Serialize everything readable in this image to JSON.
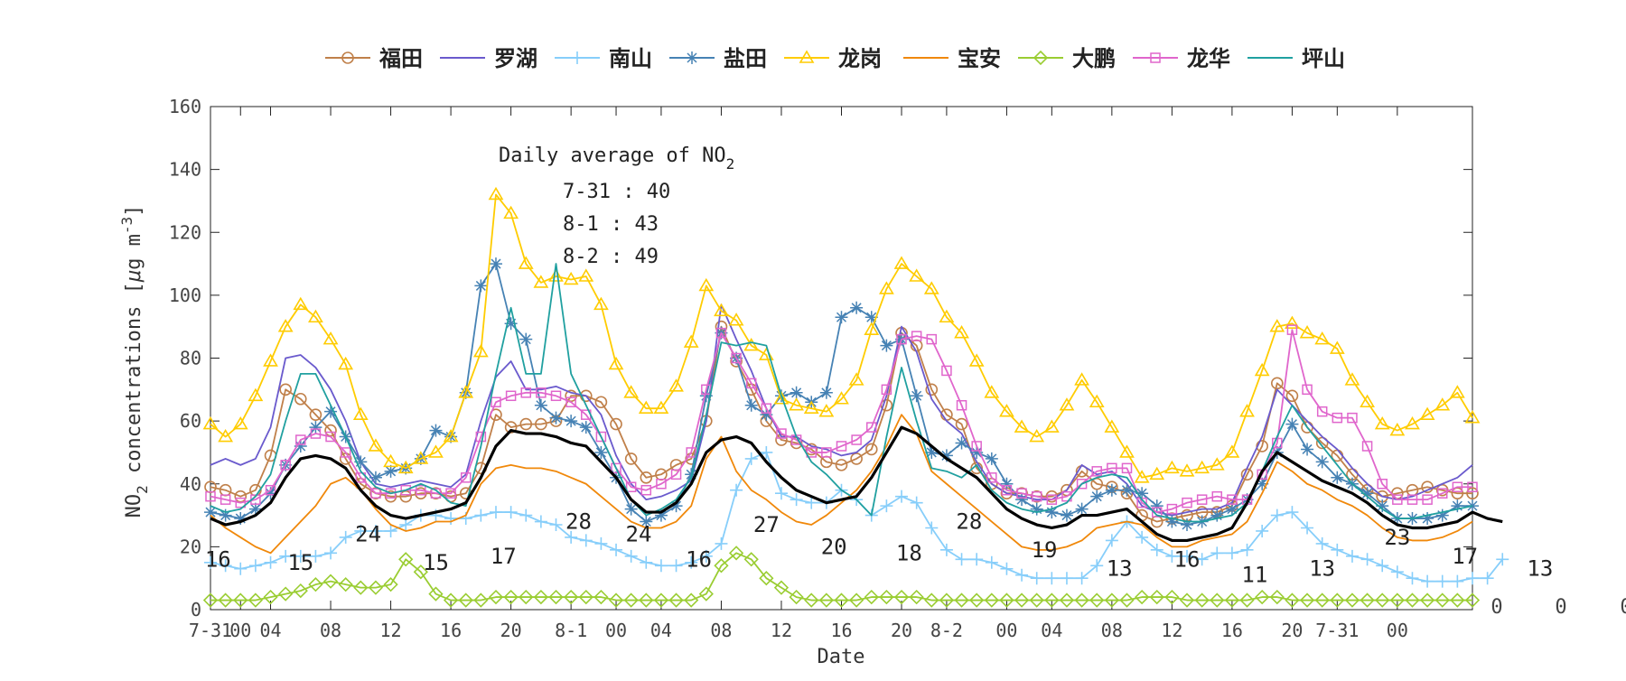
{
  "chart_data": {
    "type": "line",
    "xlabel": "Date",
    "ylabel_parts": {
      "pre": "NO",
      "sub": "2",
      "mid": " concentrations [",
      "mu": "μ",
      "post": "g m",
      "sup": "-3",
      "end": "]"
    },
    "ylim": [
      0,
      160
    ],
    "yticks": [
      "0",
      "20",
      "40",
      "60",
      "80",
      "100",
      "120",
      "140",
      "160"
    ],
    "x_range_hours": [
      0,
      84
    ],
    "xtick_labels": [
      {
        "h": 0,
        "text": "7-31"
      },
      {
        "h": 2,
        "text": "00"
      },
      {
        "h": 4,
        "text": "04"
      },
      {
        "h": 8,
        "text": "08"
      },
      {
        "h": 12,
        "text": "12"
      },
      {
        "h": 16,
        "text": "16"
      },
      {
        "h": 20,
        "text": "20"
      },
      {
        "h": 24,
        "text": "8-1"
      },
      {
        "h": 27,
        "text": "00"
      },
      {
        "h": 30,
        "text": "04"
      },
      {
        "h": 34,
        "text": "08"
      },
      {
        "h": 38,
        "text": "12"
      },
      {
        "h": 42,
        "text": "16"
      },
      {
        "h": 46,
        "text": "20"
      },
      {
        "h": 49,
        "text": "8-2"
      },
      {
        "h": 53,
        "text": "00"
      },
      {
        "h": 56,
        "text": "04"
      },
      {
        "h": 60,
        "text": "08"
      },
      {
        "h": 64,
        "text": "12"
      },
      {
        "h": 68,
        "text": "16"
      },
      {
        "h": 72,
        "text": "20"
      },
      {
        "h": 75,
        "text": "7-31"
      },
      {
        "h": 79,
        "text": "00"
      }
    ],
    "legend_position": "top",
    "legend": [
      "福田",
      "罗湖",
      "南山",
      "盐田",
      "龙岗",
      "宝安",
      "大鹏",
      "龙华",
      "坪山"
    ],
    "annotation": {
      "title": "Daily average of NO",
      "title_sub": "2",
      "lines": [
        "7-31 : 40",
        "8-1 : 43",
        "8-2 : 49"
      ]
    },
    "outside_labels": [
      "0",
      "0",
      "0"
    ],
    "series": [
      {
        "name": "福田",
        "color": "#c0804a",
        "marker": "circle",
        "values": [
          39,
          38,
          36,
          38,
          49,
          70,
          67,
          62,
          57,
          48,
          40,
          37,
          36,
          36,
          37,
          37,
          36,
          37,
          45,
          62,
          58,
          59,
          59,
          60,
          68,
          68,
          66,
          59,
          48,
          42,
          43,
          46,
          48,
          60,
          90,
          79,
          70,
          60,
          54,
          53,
          51,
          47,
          46,
          48,
          51,
          65,
          88,
          84,
          70,
          62,
          59,
          45,
          40,
          37,
          37,
          36,
          36,
          38,
          44,
          40,
          39,
          37,
          30,
          28,
          29,
          30,
          31,
          31,
          33,
          43,
          52,
          72,
          68,
          58,
          53,
          49,
          43,
          38,
          36,
          37,
          38,
          39,
          38,
          37,
          37
        ]
      },
      {
        "name": "罗湖",
        "color": "#6a5acd",
        "marker": "none",
        "values": [
          46,
          48,
          46,
          48,
          58,
          80,
          81,
          77,
          70,
          60,
          47,
          40,
          39,
          40,
          41,
          40,
          39,
          43,
          60,
          74,
          79,
          70,
          70,
          71,
          69,
          68,
          62,
          49,
          40,
          35,
          36,
          38,
          41,
          60,
          97,
          86,
          76,
          64,
          55,
          55,
          52,
          51,
          49,
          50,
          54,
          68,
          90,
          82,
          67,
          60,
          56,
          47,
          40,
          37,
          36,
          35,
          35,
          38,
          46,
          43,
          44,
          40,
          33,
          31,
          30,
          31,
          32,
          32,
          34,
          45,
          55,
          70,
          65,
          60,
          55,
          51,
          45,
          40,
          36,
          35,
          36,
          38,
          40,
          42,
          46
        ]
      },
      {
        "name": "南山",
        "color": "#87cefa",
        "marker": "plus",
        "values": [
          15,
          14,
          13,
          14,
          15,
          17,
          17,
          17,
          18,
          23,
          25,
          25,
          25,
          27,
          30,
          30,
          29,
          29,
          30,
          31,
          31,
          30,
          28,
          27,
          23,
          22,
          21,
          19,
          17,
          15,
          14,
          14,
          15,
          17,
          21,
          38,
          48,
          50,
          37,
          35,
          34,
          34,
          38,
          35,
          30,
          33,
          36,
          34,
          26,
          19,
          16,
          16,
          15,
          13,
          11,
          10,
          10,
          10,
          10,
          14,
          22,
          28,
          23,
          19,
          17,
          17,
          16,
          18,
          18,
          19,
          25,
          30,
          31,
          26,
          21,
          19,
          17,
          16,
          14,
          12,
          10,
          9,
          9,
          9,
          10,
          10,
          16
        ]
      },
      {
        "name": "盐田",
        "color": "#4682b4",
        "marker": "star",
        "values": [
          31,
          30,
          29,
          32,
          37,
          46,
          52,
          58,
          63,
          55,
          47,
          42,
          44,
          45,
          48,
          57,
          55,
          69,
          103,
          110,
          91,
          86,
          65,
          61,
          60,
          58,
          50,
          42,
          32,
          28,
          30,
          33,
          43,
          68,
          88,
          80,
          65,
          62,
          68,
          69,
          66,
          69,
          93,
          96,
          93,
          84,
          86,
          68,
          50,
          49,
          53,
          50,
          48,
          40,
          35,
          32,
          31,
          30,
          32,
          36,
          38,
          38,
          37,
          33,
          28,
          27,
          28,
          30,
          32,
          35,
          40,
          50,
          59,
          51,
          47,
          42,
          40,
          37,
          33,
          29,
          29,
          29,
          30,
          33,
          33
        ]
      },
      {
        "name": "龙岗",
        "color": "#ffcc00",
        "marker": "triangle",
        "values": [
          59,
          55,
          59,
          68,
          79,
          90,
          97,
          93,
          86,
          78,
          62,
          52,
          47,
          45,
          48,
          50,
          55,
          69,
          82,
          132,
          126,
          110,
          104,
          106,
          105,
          106,
          97,
          78,
          69,
          64,
          64,
          71,
          85,
          103,
          95,
          92,
          84,
          81,
          67,
          65,
          64,
          63,
          67,
          73,
          89,
          102,
          110,
          106,
          102,
          93,
          88,
          79,
          69,
          63,
          58,
          55,
          58,
          65,
          73,
          66,
          58,
          50,
          42,
          43,
          45,
          44,
          45,
          46,
          50,
          63,
          76,
          90,
          91,
          88,
          86,
          83,
          73,
          66,
          59,
          57,
          59,
          62,
          65,
          69,
          61
        ]
      },
      {
        "name": "宝安",
        "color": "#f0880a",
        "marker": "none",
        "values": [
          30,
          26,
          23,
          20,
          18,
          23,
          28,
          33,
          40,
          42,
          38,
          32,
          27,
          25,
          26,
          28,
          28,
          30,
          40,
          45,
          46,
          45,
          45,
          44,
          42,
          40,
          36,
          32,
          28,
          26,
          26,
          28,
          33,
          48,
          55,
          44,
          38,
          35,
          31,
          28,
          27,
          30,
          34,
          38,
          44,
          52,
          62,
          56,
          44,
          40,
          36,
          32,
          28,
          24,
          20,
          19,
          19,
          20,
          22,
          26,
          27,
          28,
          27,
          23,
          20,
          20,
          22,
          23,
          24,
          28,
          37,
          47,
          44,
          40,
          38,
          35,
          33,
          30,
          26,
          23,
          22,
          22,
          23,
          25,
          28
        ]
      },
      {
        "name": "大鹏",
        "color": "#9acd32",
        "marker": "diamond",
        "values": [
          3,
          3,
          3,
          3,
          4,
          5,
          6,
          8,
          9,
          8,
          7,
          7,
          8,
          16,
          12,
          5,
          3,
          3,
          3,
          4,
          4,
          4,
          4,
          4,
          4,
          4,
          4,
          3,
          3,
          3,
          3,
          3,
          3,
          5,
          14,
          18,
          16,
          10,
          7,
          4,
          3,
          3,
          3,
          3,
          4,
          4,
          4,
          4,
          3,
          3,
          3,
          3,
          3,
          3,
          3,
          3,
          3,
          3,
          3,
          3,
          3,
          3,
          4,
          4,
          4,
          3,
          3,
          3,
          3,
          3,
          4,
          4,
          3,
          3,
          3,
          3,
          3,
          3,
          3,
          3,
          3,
          3,
          3,
          3,
          3
        ]
      },
      {
        "name": "龙华",
        "color": "#e066cc",
        "marker": "square",
        "values": [
          36,
          35,
          34,
          35,
          38,
          46,
          54,
          56,
          55,
          50,
          42,
          37,
          37,
          38,
          38,
          37,
          37,
          42,
          55,
          66,
          68,
          69,
          69,
          68,
          66,
          62,
          55,
          45,
          39,
          38,
          40,
          43,
          50,
          70,
          88,
          80,
          72,
          64,
          56,
          54,
          50,
          50,
          52,
          54,
          58,
          70,
          86,
          87,
          86,
          76,
          65,
          52,
          42,
          38,
          37,
          36,
          35,
          36,
          40,
          44,
          45,
          45,
          34,
          31,
          32,
          34,
          35,
          36,
          35,
          35,
          43,
          53,
          89,
          70,
          63,
          61,
          61,
          52,
          40,
          35,
          35,
          35,
          37,
          39,
          39
        ]
      },
      {
        "name": "坪山",
        "color": "#20a0a0",
        "marker": "none",
        "values": [
          33,
          31,
          32,
          36,
          43,
          60,
          75,
          75,
          65,
          55,
          44,
          39,
          37,
          38,
          40,
          38,
          34,
          33,
          52,
          75,
          96,
          75,
          75,
          110,
          75,
          65,
          55,
          45,
          35,
          30,
          32,
          35,
          42,
          62,
          85,
          84,
          85,
          84,
          68,
          55,
          47,
          43,
          38,
          35,
          30,
          55,
          77,
          60,
          45,
          44,
          42,
          46,
          38,
          34,
          32,
          31,
          32,
          34,
          40,
          42,
          43,
          42,
          35,
          30,
          29,
          28,
          28,
          29,
          30,
          34,
          44,
          55,
          65,
          58,
          52,
          46,
          40,
          36,
          32,
          29,
          29,
          30,
          31,
          32,
          33
        ]
      },
      {
        "name": "",
        "color": "#000000",
        "marker": "none",
        "bold": true,
        "values": [
          29,
          27,
          28,
          30,
          34,
          42,
          48,
          49,
          48,
          45,
          38,
          33,
          30,
          29,
          30,
          31,
          32,
          34,
          42,
          52,
          57,
          56,
          56,
          55,
          53,
          52,
          47,
          42,
          35,
          31,
          31,
          34,
          40,
          50,
          54,
          55,
          53,
          47,
          42,
          38,
          36,
          34,
          35,
          36,
          42,
          50,
          58,
          56,
          52,
          48,
          45,
          42,
          37,
          32,
          29,
          27,
          26,
          27,
          30,
          30,
          31,
          32,
          28,
          24,
          22,
          22,
          23,
          24,
          26,
          34,
          44,
          50,
          47,
          44,
          41,
          39,
          37,
          34,
          30,
          27,
          26,
          26,
          27,
          28,
          31,
          29,
          28
        ]
      }
    ],
    "data_labels": [
      {
        "h": 0.5,
        "v": 16,
        "text": "16"
      },
      {
        "h": 6,
        "v": 15,
        "text": "15"
      },
      {
        "h": 10.5,
        "v": 24,
        "text": "24"
      },
      {
        "h": 15,
        "v": 15,
        "text": "15"
      },
      {
        "h": 19.5,
        "v": 17,
        "text": "17"
      },
      {
        "h": 24.5,
        "v": 28,
        "text": "28"
      },
      {
        "h": 28.5,
        "v": 24,
        "text": "24"
      },
      {
        "h": 32.5,
        "v": 16,
        "text": "16"
      },
      {
        "h": 37,
        "v": 27,
        "text": "27"
      },
      {
        "h": 41.5,
        "v": 20,
        "text": "20"
      },
      {
        "h": 46.5,
        "v": 18,
        "text": "18"
      },
      {
        "h": 50.5,
        "v": 28,
        "text": "28"
      },
      {
        "h": 55.5,
        "v": 19,
        "text": "19"
      },
      {
        "h": 60.5,
        "v": 13,
        "text": "13"
      },
      {
        "h": 65,
        "v": 16,
        "text": "16"
      },
      {
        "h": 69.5,
        "v": 11,
        "text": "11"
      },
      {
        "h": 74,
        "v": 13,
        "text": "13"
      },
      {
        "h": 79,
        "v": 23,
        "text": "23"
      },
      {
        "h": 83.5,
        "v": 17,
        "text": "17"
      },
      {
        "h": 88.5,
        "v": 13,
        "text": "13"
      }
    ]
  }
}
